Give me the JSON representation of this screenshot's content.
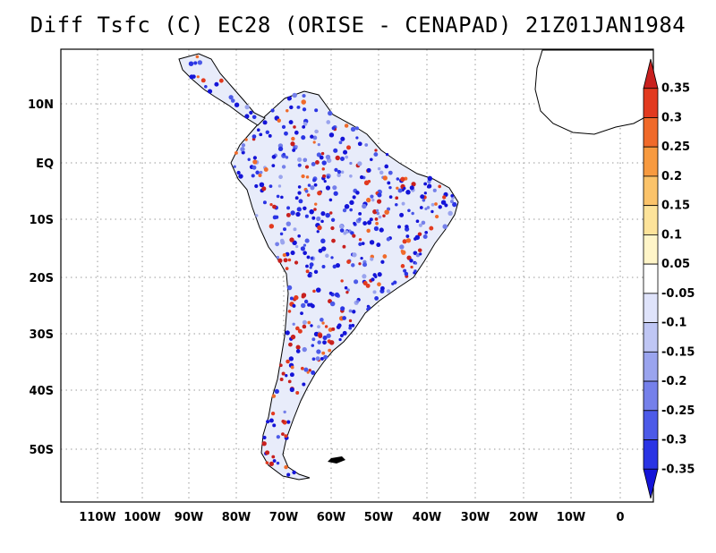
{
  "title": "Diff Tsfc (C) EC28 (ORISE - CENAPAD) 21Z01JAN1984",
  "lon_ticks": [
    "110W",
    "100W",
    "90W",
    "80W",
    "70W",
    "60W",
    "50W",
    "40W",
    "30W",
    "20W",
    "10W",
    "0"
  ],
  "lat_ticks": [
    "10N",
    "EQ",
    "10S",
    "20S",
    "30S",
    "40S",
    "50S"
  ],
  "colorbar": {
    "labels": [
      "0.35",
      "0.3",
      "0.25",
      "0.2",
      "0.15",
      "0.1",
      "0.05",
      "-0.05",
      "-0.1",
      "-0.15",
      "-0.2",
      "-0.25",
      "-0.3",
      "-0.35"
    ],
    "colors": [
      "#c8201e",
      "#e23a1f",
      "#f06a2a",
      "#f79a40",
      "#fbc36a",
      "#fde39a",
      "#fff5c8",
      "#ffffff",
      "#dfe3fa",
      "#bfc6f4",
      "#9aa4ee",
      "#7580ea",
      "#4c5ae8",
      "#2a34e4",
      "#1414d8"
    ]
  },
  "map": {
    "extent": {
      "lon": [
        -117,
        7
      ],
      "lat": [
        -59,
        19
      ]
    },
    "colors": {
      "land_fill": "#e8ecfa",
      "coast": "#000000",
      "grid": "#9a9a9a"
    }
  }
}
